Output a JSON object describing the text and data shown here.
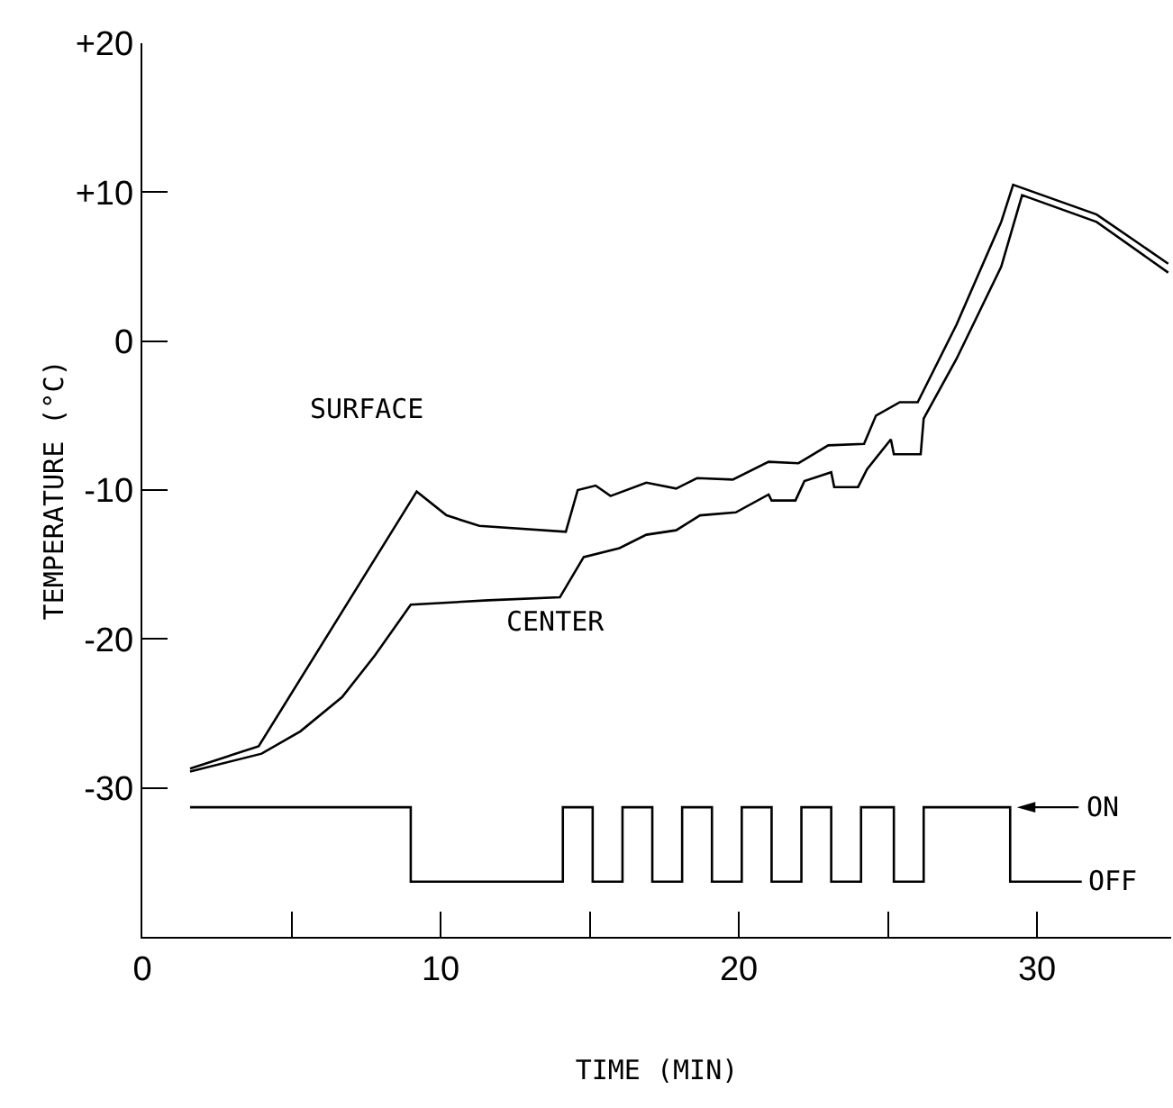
{
  "chart_data": {
    "type": "line",
    "xlabel": "TIME (MIN)",
    "ylabel": "TEMPERATURE (°C)",
    "xlim": [
      0,
      34.5
    ],
    "xticks": [
      0,
      {
        "value": 5,
        "label": null
      },
      10,
      {
        "value": 15,
        "label": null
      },
      20,
      {
        "value": 25,
        "label": null
      },
      30
    ],
    "ylim": [
      -40,
      20
    ],
    "yticks": [
      {
        "value": 20,
        "label": "+20"
      },
      {
        "value": 10,
        "label": "+10"
      },
      {
        "value": 0,
        "label": "0"
      },
      {
        "value": -10,
        "label": "-10"
      },
      {
        "value": -20,
        "label": "-20"
      },
      {
        "value": -30,
        "label": "-30"
      }
    ],
    "legend": false,
    "line_style": "solid",
    "series": [
      {
        "name": "SURFACE",
        "color": "#000000",
        "x": [
          1.6,
          3.9,
          9.2,
          10.2,
          11.3,
          14.2,
          14.6,
          15.2,
          15.7,
          16.9,
          17.9,
          18.6,
          19.8,
          21.0,
          22.0,
          23.0,
          24.2,
          24.6,
          25.4,
          26.0,
          27.3,
          28.8,
          29.2,
          32.0,
          34.4
        ],
        "values": [
          -28.7,
          -27.2,
          -10.1,
          -11.7,
          -12.4,
          -12.8,
          -10.0,
          -9.7,
          -10.4,
          -9.5,
          -9.9,
          -9.2,
          -9.3,
          -8.1,
          -8.2,
          -7.0,
          -6.9,
          -5.0,
          -4.1,
          -4.1,
          1.1,
          8.0,
          10.5,
          8.5,
          5.2
        ]
      },
      {
        "name": "CENTER",
        "color": "#000000",
        "x": [
          1.6,
          4.0,
          5.3,
          6.7,
          7.8,
          9.0,
          11.6,
          14.0,
          14.8,
          16.0,
          16.9,
          17.9,
          18.7,
          19.9,
          21.0,
          21.1,
          21.9,
          22.2,
          23.1,
          23.2,
          24.0,
          24.3,
          25.1,
          25.2,
          26.1,
          26.2,
          27.3,
          28.8,
          29.5,
          32.0,
          34.4
        ],
        "values": [
          -28.9,
          -27.7,
          -26.2,
          -23.9,
          -21.1,
          -17.7,
          -17.4,
          -17.2,
          -14.5,
          -13.9,
          -13.0,
          -12.7,
          -11.7,
          -11.5,
          -10.3,
          -10.7,
          -10.7,
          -9.4,
          -8.8,
          -9.8,
          -9.8,
          -8.6,
          -6.6,
          -7.6,
          -7.6,
          -5.2,
          -1.2,
          5.0,
          9.8,
          8.0,
          4.6
        ]
      },
      {
        "type": "step",
        "color": "#000000",
        "x": [
          1.6,
          9.0,
          14.1,
          15.1,
          16.1,
          17.1,
          18.1,
          19.1,
          20.1,
          21.1,
          22.1,
          23.1,
          24.1,
          25.2,
          26.2,
          29.1,
          31.5
        ],
        "values": [
          -31.3,
          -36.3,
          -31.3,
          -36.3,
          -31.3,
          -36.3,
          -31.3,
          -36.3,
          -31.3,
          -36.3,
          -31.3,
          -36.3,
          -31.3,
          -36.3,
          -31.3,
          -36.3,
          -36.3
        ]
      }
    ],
    "annotations": [
      "ON",
      {
        "text": "OFF",
        "x": 31.5,
        "y": -36.3
      }
    ]
  }
}
